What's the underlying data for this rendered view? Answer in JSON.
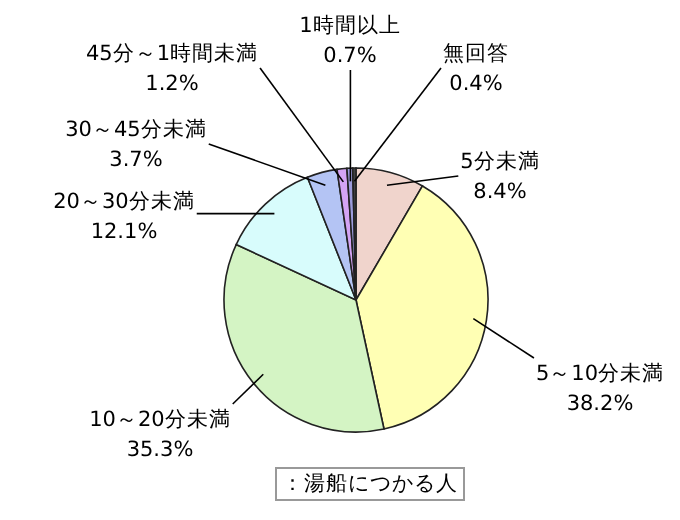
{
  "chart_data": {
    "type": "pie",
    "categories": [
      "5分未満",
      "5～10分未満",
      "10～20分未満",
      "20～30分未満",
      "30～45分未満",
      "45分～1時間未満",
      "1時間以上",
      "無回答"
    ],
    "values": [
      8.4,
      38.2,
      35.3,
      12.1,
      3.7,
      1.2,
      0.7,
      0.4
    ],
    "value_labels": [
      "8.4%",
      "38.2%",
      "35.3%",
      "12.1%",
      "3.7%",
      "1.2%",
      "0.7%",
      "0.4%"
    ],
    "colors": [
      "#f0d4cc",
      "#ffffb4",
      "#d4f4c4",
      "#d8fcfc",
      "#b4c4f4",
      "#d4a4f4",
      "#9c9cdc",
      "#404040"
    ],
    "annotations": [
      "：湯船につかる人"
    ]
  }
}
